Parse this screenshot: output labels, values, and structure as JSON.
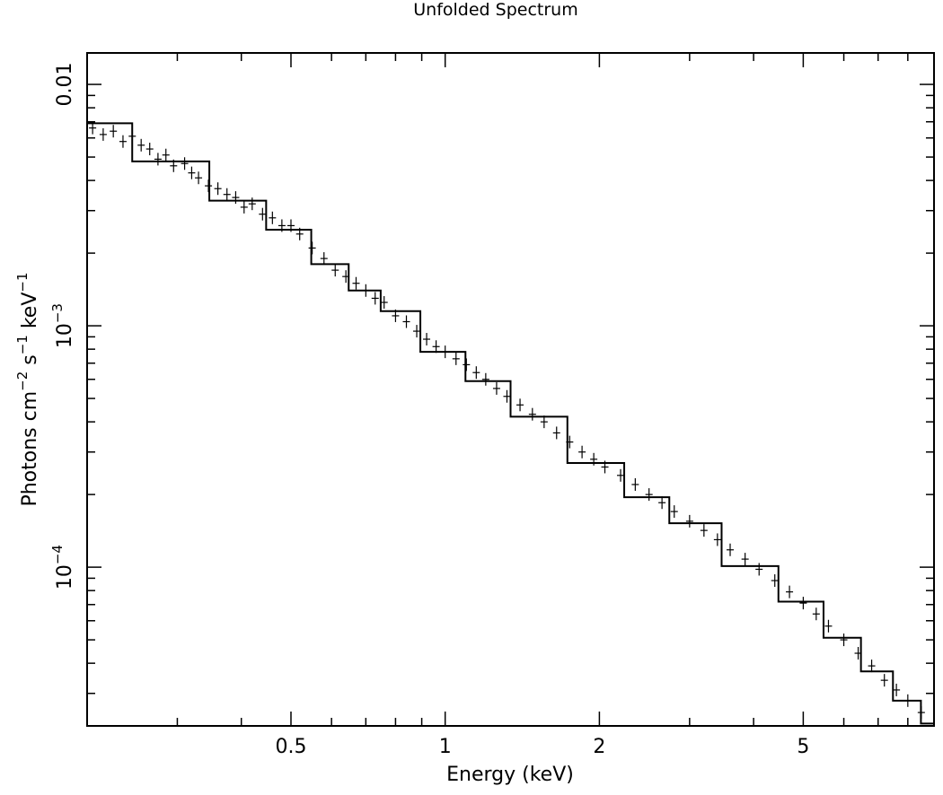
{
  "chart_data": {
    "type": "scatter",
    "title": "Unfolded Spectrum",
    "xlabel": "Energy (keV)",
    "ylabel": {
      "parts": [
        "Photons cm",
        "−2",
        " s",
        "−1",
        " keV",
        "−1"
      ]
    },
    "x_scale": "log",
    "y_scale": "log",
    "xlim": [
      0.2,
      9.0
    ],
    "ylim": [
      2.2e-05,
      0.0135
    ],
    "x_ticks": [
      {
        "value": 0.5,
        "label": "0.5"
      },
      {
        "value": 1,
        "label": "1"
      },
      {
        "value": 2,
        "label": "2"
      },
      {
        "value": 5,
        "label": "5"
      }
    ],
    "y_ticks": [
      {
        "value": 0.01,
        "label": "0.01",
        "base": "",
        "exp": ""
      },
      {
        "value": 0.001,
        "label": "",
        "base": "10",
        "exp": "−3"
      },
      {
        "value": 0.0001,
        "label": "",
        "base": "10",
        "exp": "−4"
      }
    ],
    "series": [
      {
        "role": "data",
        "style": "crosses",
        "points": [
          [
            0.205,
            0.0066
          ],
          [
            0.215,
            0.0062
          ],
          [
            0.225,
            0.0064
          ],
          [
            0.235,
            0.0058
          ],
          [
            0.245,
            0.0061
          ],
          [
            0.255,
            0.0056
          ],
          [
            0.265,
            0.0054
          ],
          [
            0.275,
            0.0049
          ],
          [
            0.285,
            0.0051
          ],
          [
            0.295,
            0.0046
          ],
          [
            0.31,
            0.0047
          ],
          [
            0.32,
            0.0043
          ],
          [
            0.33,
            0.0041
          ],
          [
            0.345,
            0.0038
          ],
          [
            0.36,
            0.0037
          ],
          [
            0.375,
            0.0035
          ],
          [
            0.39,
            0.0034
          ],
          [
            0.405,
            0.0031
          ],
          [
            0.42,
            0.0032
          ],
          [
            0.44,
            0.0029
          ],
          [
            0.46,
            0.0028
          ],
          [
            0.48,
            0.0026
          ],
          [
            0.5,
            0.0026
          ],
          [
            0.52,
            0.0024
          ],
          [
            0.55,
            0.0021
          ],
          [
            0.58,
            0.0019
          ],
          [
            0.61,
            0.0017
          ],
          [
            0.64,
            0.0016
          ],
          [
            0.67,
            0.0015
          ],
          [
            0.7,
            0.0014
          ],
          [
            0.73,
            0.0013
          ],
          [
            0.76,
            0.00125
          ],
          [
            0.8,
            0.0011
          ],
          [
            0.84,
            0.00104
          ],
          [
            0.88,
            0.00095
          ],
          [
            0.92,
            0.00088
          ],
          [
            0.96,
            0.00082
          ],
          [
            1.0,
            0.00078
          ],
          [
            1.05,
            0.00073
          ],
          [
            1.1,
            0.00069
          ],
          [
            1.15,
            0.00064
          ],
          [
            1.2,
            0.0006
          ],
          [
            1.26,
            0.00055
          ],
          [
            1.32,
            0.00051
          ],
          [
            1.4,
            0.00047
          ],
          [
            1.48,
            0.00043
          ],
          [
            1.56,
            0.0004
          ],
          [
            1.65,
            0.00036
          ],
          [
            1.75,
            0.00033
          ],
          [
            1.85,
            0.0003
          ],
          [
            1.95,
            0.00028
          ],
          [
            2.05,
            0.00026
          ],
          [
            2.2,
            0.00024
          ],
          [
            2.35,
            0.00022
          ],
          [
            2.5,
            0.0002
          ],
          [
            2.65,
            0.000185
          ],
          [
            2.8,
            0.00017
          ],
          [
            3.0,
            0.000155
          ],
          [
            3.2,
            0.000142
          ],
          [
            3.4,
            0.00013
          ],
          [
            3.6,
            0.000118
          ],
          [
            3.85,
            0.000108
          ],
          [
            4.1,
            9.8e-05
          ],
          [
            4.4,
            8.8e-05
          ],
          [
            4.7,
            7.9e-05
          ],
          [
            5.0,
            7.1e-05
          ],
          [
            5.3,
            6.4e-05
          ],
          [
            5.6,
            5.7e-05
          ],
          [
            6.0,
            5e-05
          ],
          [
            6.4,
            4.4e-05
          ],
          [
            6.8,
            3.9e-05
          ],
          [
            7.2,
            3.4e-05
          ],
          [
            7.6,
            3.1e-05
          ],
          [
            8.0,
            2.8e-05
          ],
          [
            8.5,
            2.5e-05
          ]
        ]
      },
      {
        "role": "model",
        "style": "step-line",
        "points": [
          [
            0.2,
            0.0069
          ],
          [
            0.3,
            0.0048
          ],
          [
            0.4,
            0.0033
          ],
          [
            0.5,
            0.0025
          ],
          [
            0.6,
            0.0018
          ],
          [
            0.7,
            0.0014
          ],
          [
            0.8,
            0.00115
          ],
          [
            1.0,
            0.00078
          ],
          [
            1.2,
            0.00059
          ],
          [
            1.5,
            0.00042
          ],
          [
            2.0,
            0.00027
          ],
          [
            2.5,
            0.000195
          ],
          [
            3.0,
            0.000152
          ],
          [
            4.0,
            0.000101
          ],
          [
            5.0,
            7.2e-05
          ],
          [
            6.0,
            5.1e-05
          ],
          [
            7.0,
            3.7e-05
          ],
          [
            8.0,
            2.8e-05
          ],
          [
            9.0,
            2.25e-05
          ]
        ]
      }
    ]
  }
}
